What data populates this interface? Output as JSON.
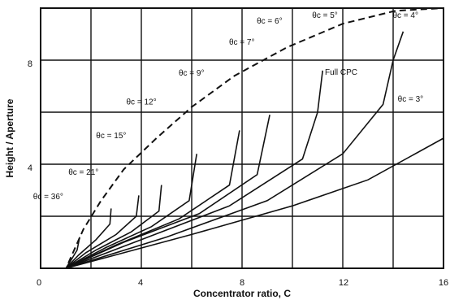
{
  "chart_data": {
    "type": "line",
    "xlabel": "Concentrator ratio, C",
    "ylabel": "Height / Aperture",
    "xlim": [
      0,
      16
    ],
    "ylim": [
      0,
      10
    ],
    "x_ticks": [
      "0",
      "4",
      "8",
      "12",
      "16"
    ],
    "y_ticks": [
      "4",
      "8"
    ],
    "grid": true,
    "full_cpc_label": "Full CPC",
    "full_cpc_curve": {
      "x": [
        1.1,
        1.7,
        2.4,
        3.3,
        4.6,
        6.0,
        7.7,
        9.8,
        12.0,
        14.1,
        16.0
      ],
      "y": [
        0.2,
        1.5,
        2.6,
        3.8,
        5.0,
        6.2,
        7.4,
        8.5,
        9.4,
        9.9,
        10.0
      ]
    },
    "series": [
      {
        "name": "θc = 36°",
        "label_x": 0.9,
        "label_y": 2.65,
        "x": [
          1.0,
          1.2,
          1.45,
          1.55
        ],
        "y": [
          0.0,
          0.3,
          0.7,
          1.2
        ]
      },
      {
        "name": "θc = 21°",
        "label_x": 2.3,
        "label_y": 3.6,
        "x": [
          1.0,
          1.5,
          2.2,
          2.75,
          2.8
        ],
        "y": [
          0.0,
          0.5,
          1.1,
          1.7,
          2.3
        ]
      },
      {
        "name": "θc = 15°",
        "label_x": 3.4,
        "label_y": 5.0,
        "x": [
          1.0,
          1.8,
          3.0,
          3.8,
          3.9
        ],
        "y": [
          0.0,
          0.6,
          1.3,
          2.0,
          2.8
        ]
      },
      {
        "name": "θc = 12°",
        "label_x": 4.6,
        "label_y": 6.3,
        "x": [
          1.0,
          2.2,
          3.6,
          4.7,
          4.8
        ],
        "y": [
          0.0,
          0.7,
          1.4,
          2.2,
          3.2
        ]
      },
      {
        "name": "θc = 9°",
        "label_x": 6.5,
        "label_y": 7.4,
        "x": [
          1.0,
          2.6,
          4.4,
          5.9,
          6.2
        ],
        "y": [
          0.0,
          0.8,
          1.6,
          2.6,
          4.4
        ]
      },
      {
        "name": "θc = 7°",
        "label_x": 8.5,
        "label_y": 8.6,
        "x": [
          1.0,
          3.0,
          5.5,
          7.5,
          7.9
        ],
        "y": [
          0.0,
          0.9,
          1.9,
          3.2,
          5.3
        ]
      },
      {
        "name": "θc = 6°",
        "label_x": 9.6,
        "label_y": 9.4,
        "x": [
          1.0,
          3.3,
          6.3,
          8.6,
          9.1
        ],
        "y": [
          0.0,
          1.0,
          2.1,
          3.6,
          5.9
        ]
      },
      {
        "name": "θc = 5°",
        "label_x": 11.8,
        "label_y": 10.3,
        "x": [
          1.0,
          4.0,
          7.5,
          10.4,
          11.0,
          11.2
        ],
        "y": [
          0.0,
          1.1,
          2.4,
          4.2,
          6.0,
          7.6
        ]
      },
      {
        "name": "θc = 4°",
        "label_x": 15.0,
        "label_y": 11.4,
        "x": [
          1.0,
          5.0,
          9.0,
          12.0,
          13.6,
          14.0,
          14.4
        ],
        "y": [
          0.0,
          1.2,
          2.6,
          4.4,
          6.3,
          8.0,
          9.1
        ]
      },
      {
        "name": "θc = 3°",
        "label_x": 15.2,
        "label_y": 6.4,
        "x": [
          1.0,
          6.0,
          10.0,
          13.0,
          16.0
        ],
        "y": [
          0.0,
          1.3,
          2.4,
          3.4,
          5.0
        ]
      }
    ]
  }
}
